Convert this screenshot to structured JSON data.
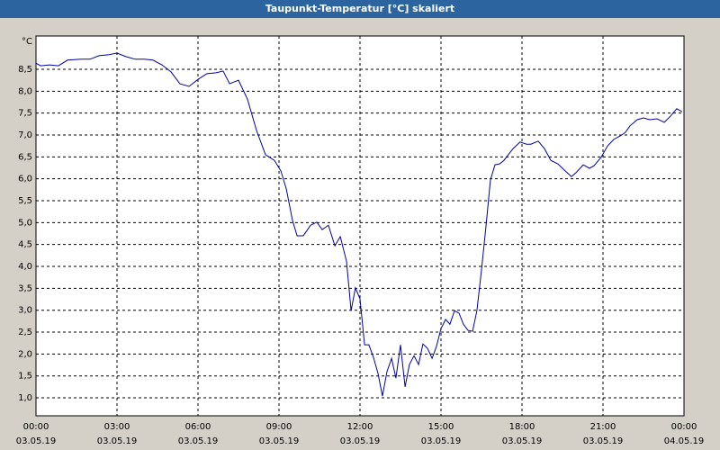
{
  "chart_data": {
    "type": "line",
    "title": "Taupunkt-Temperatur [°C] skaliert",
    "y_unit": "°C",
    "x": [
      0,
      0.17,
      0.5,
      0.83,
      1.17,
      1.67,
      2,
      2.33,
      2.67,
      3,
      3.33,
      3.67,
      4,
      4.33,
      4.67,
      5,
      5.33,
      5.67,
      6,
      6.33,
      6.67,
      6.93,
      7.17,
      7.5,
      7.83,
      8.17,
      8.5,
      8.83,
      9.07,
      9.27,
      9.5,
      9.67,
      9.9,
      10.17,
      10.4,
      10.6,
      10.83,
      11.07,
      11.27,
      11.5,
      11.67,
      11.83,
      12,
      12.17,
      12.33,
      12.5,
      12.67,
      12.83,
      13,
      13.17,
      13.33,
      13.5,
      13.67,
      13.83,
      14,
      14.17,
      14.33,
      14.5,
      14.67,
      14.83,
      15,
      15.17,
      15.33,
      15.5,
      15.67,
      15.83,
      16,
      16.17,
      16.33,
      16.5,
      16.67,
      16.83,
      17,
      17.17,
      17.33,
      17.67,
      17.93,
      18.17,
      18.33,
      18.6,
      18.83,
      19.07,
      19.33,
      19.6,
      19.83,
      20,
      20.27,
      20.5,
      20.67,
      20.93,
      21.17,
      21.4,
      21.67,
      21.83,
      22,
      22.27,
      22.5,
      22.73,
      23,
      23.27,
      23.5,
      23.73,
      23.93
    ],
    "series": [
      {
        "color": "#0000a8",
        "values": [
          8.64,
          8.58,
          8.6,
          8.58,
          8.71,
          8.73,
          8.73,
          8.81,
          8.83,
          8.87,
          8.79,
          8.73,
          8.73,
          8.71,
          8.6,
          8.44,
          8.17,
          8.11,
          8.27,
          8.4,
          8.42,
          8.46,
          8.17,
          8.25,
          7.82,
          7.1,
          6.55,
          6.42,
          6.18,
          5.77,
          5.05,
          4.7,
          4.7,
          4.94,
          5.01,
          4.84,
          4.94,
          4.47,
          4.68,
          4.12,
          2.99,
          3.51,
          3.26,
          2.21,
          2.21,
          1.92,
          1.55,
          1.04,
          1.6,
          1.9,
          1.45,
          2.21,
          1.25,
          1.76,
          1.96,
          1.76,
          2.23,
          2.13,
          1.9,
          2.17,
          2.58,
          2.79,
          2.68,
          2.99,
          2.93,
          2.68,
          2.54,
          2.52,
          2.99,
          3.92,
          4.94,
          5.97,
          6.32,
          6.34,
          6.42,
          6.69,
          6.84,
          6.79,
          6.79,
          6.86,
          6.69,
          6.42,
          6.34,
          6.18,
          6.05,
          6.14,
          6.32,
          6.24,
          6.3,
          6.49,
          6.75,
          6.9,
          6.99,
          7.06,
          7.21,
          7.35,
          7.39,
          7.35,
          7.37,
          7.29,
          7.43,
          7.6,
          7.53
        ]
      }
    ],
    "xlim": [
      0,
      24
    ],
    "xticks": [
      {
        "value": 0,
        "label": "00:00",
        "date": "03.05.19"
      },
      {
        "value": 3,
        "label": "03:00",
        "date": "03.05.19"
      },
      {
        "value": 6,
        "label": "06:00",
        "date": "03.05.19"
      },
      {
        "value": 9,
        "label": "09:00",
        "date": "03.05.19"
      },
      {
        "value": 12,
        "label": "12:00",
        "date": "03.05.19"
      },
      {
        "value": 15,
        "label": "15:00",
        "date": "03.05.19"
      },
      {
        "value": 18,
        "label": "18:00",
        "date": "03.05.19"
      },
      {
        "value": 21,
        "label": "21:00",
        "date": "03.05.19"
      },
      {
        "value": 24,
        "label": "00:00",
        "date": "04.05.19"
      }
    ],
    "ylim": [
      0.59,
      9.26
    ],
    "yticks": [
      {
        "value": 1,
        "label": "1,0"
      },
      {
        "value": 1.5,
        "label": "1,5"
      },
      {
        "value": 2,
        "label": "2,0"
      },
      {
        "value": 2.5,
        "label": "2,5"
      },
      {
        "value": 3,
        "label": "3,0"
      },
      {
        "value": 3.5,
        "label": "3,5"
      },
      {
        "value": 4,
        "label": "4,0"
      },
      {
        "value": 4.5,
        "label": "4,5"
      },
      {
        "value": 5,
        "label": "5,0"
      },
      {
        "value": 5.5,
        "label": "5,5"
      },
      {
        "value": 6,
        "label": "6,0"
      },
      {
        "value": 6.5,
        "label": "6,5"
      },
      {
        "value": 7,
        "label": "7,0"
      },
      {
        "value": 7.5,
        "label": "7,5"
      },
      {
        "value": 8,
        "label": "8,0"
      },
      {
        "value": 8.5,
        "label": "8,5"
      }
    ],
    "grid": true
  }
}
